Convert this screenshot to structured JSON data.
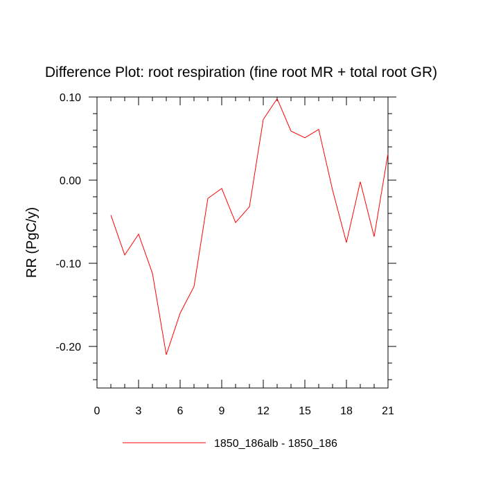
{
  "chart_data": {
    "type": "line",
    "title": "Difference Plot: root respiration (fine root MR + total root GR)",
    "xlabel": "",
    "ylabel": "RR  (PgC/y)",
    "xlim": [
      0,
      21
    ],
    "ylim": [
      -0.25,
      0.1
    ],
    "xticks": [
      0,
      3,
      6,
      9,
      12,
      15,
      18,
      21
    ],
    "xtick_labels": [
      "0",
      "3",
      "6",
      "9",
      "12",
      "15",
      "18",
      "21"
    ],
    "yticks": [
      0.1,
      0.0,
      -0.1,
      -0.2
    ],
    "ytick_labels": [
      "0.10",
      "0.00",
      "-0.10",
      "-0.20"
    ],
    "grid": false,
    "legend_position": "bottom-center",
    "series": [
      {
        "name": "1850_186alb - 1850_186",
        "color": "#ff0000",
        "x": [
          1,
          2,
          3,
          4,
          5,
          6,
          7,
          8,
          9,
          10,
          11,
          12,
          13,
          14,
          15,
          16,
          17,
          18,
          19,
          20,
          21
        ],
        "values": [
          -0.042,
          -0.09,
          -0.065,
          -0.112,
          -0.21,
          -0.16,
          -0.128,
          -0.022,
          -0.01,
          -0.051,
          -0.032,
          0.073,
          0.098,
          0.059,
          0.051,
          0.061,
          -0.012,
          -0.075,
          -0.002,
          -0.068,
          0.032
        ]
      }
    ]
  }
}
